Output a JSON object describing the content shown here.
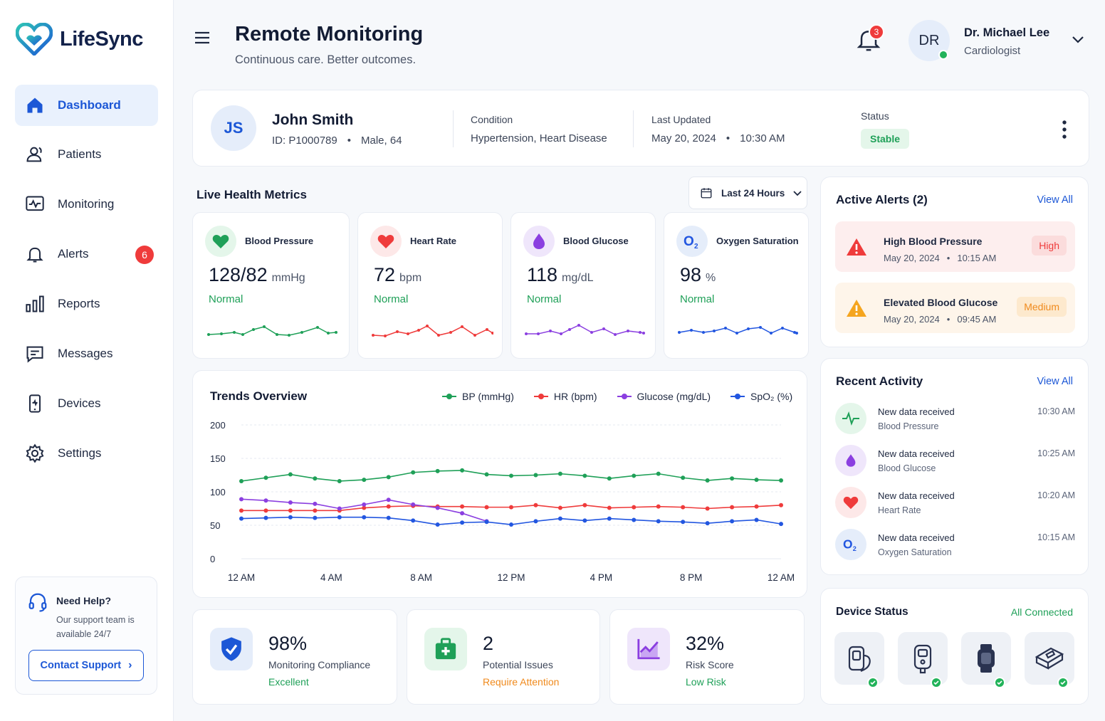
{
  "app": {
    "name": "LifeSync"
  },
  "sidebar": {
    "items": [
      {
        "label": "Dashboard",
        "icon": "home-icon",
        "active": true
      },
      {
        "label": "Patients",
        "icon": "users-icon"
      },
      {
        "label": "Monitoring",
        "icon": "monitor-icon"
      },
      {
        "label": "Alerts",
        "icon": "bell-icon",
        "badge": "6"
      },
      {
        "label": "Reports",
        "icon": "bar-chart-icon"
      },
      {
        "label": "Messages",
        "icon": "message-icon"
      },
      {
        "label": "Devices",
        "icon": "device-icon"
      },
      {
        "label": "Settings",
        "icon": "gear-icon"
      }
    ],
    "help": {
      "title": "Need Help?",
      "text": "Our support team is available 24/7",
      "button": "Contact Support"
    }
  },
  "header": {
    "title": "Remote Monitoring",
    "subtitle": "Continuous care. Better outcomes.",
    "notifications": "3",
    "user": {
      "initials": "DR",
      "name": "Dr. Michael Lee",
      "role": "Cardiologist"
    }
  },
  "patient": {
    "initials": "JS",
    "name": "John Smith",
    "id": "ID: P1000789",
    "demo": "Male, 64",
    "condition_label": "Condition",
    "condition": "Hypertension, Heart Disease",
    "updated_label": "Last Updated",
    "updated_date": "May 20, 2024",
    "updated_time": "10:30 AM",
    "status_label": "Status",
    "status": "Stable"
  },
  "metrics": {
    "title": "Live Health Metrics",
    "range": "Last 24 Hours",
    "cards": [
      {
        "title": "Blood Pressure",
        "value": "128/82",
        "unit": "mmHg",
        "status": "Normal",
        "color": "#1fa058"
      },
      {
        "title": "Heart Rate",
        "value": "72",
        "unit": "bpm",
        "status": "Normal",
        "color": "#ef3b3b"
      },
      {
        "title": "Blood Glucose",
        "value": "118",
        "unit": "mg/dL",
        "status": "Normal",
        "color": "#8b3fe0"
      },
      {
        "title": "Oxygen Saturation",
        "value": "98",
        "unit": "%",
        "status": "Normal",
        "color": "#2256e0"
      }
    ]
  },
  "chart_data": {
    "type": "line",
    "title": "Trends Overview",
    "x_ticks": [
      "12 AM",
      "4 AM",
      "8 AM",
      "12 PM",
      "4 PM",
      "8 PM",
      "12 AM"
    ],
    "ylim": [
      0,
      200
    ],
    "y_ticks": [
      "0",
      "50",
      "100",
      "150",
      "200"
    ],
    "grid": true,
    "legend": "top-right",
    "series": [
      {
        "name": "BP (mmHg)",
        "color": "#1fa058",
        "values": [
          116,
          121,
          126,
          120,
          116,
          118,
          122,
          129,
          131,
          132,
          126,
          124,
          125,
          127,
          124,
          120,
          124,
          127,
          121,
          117,
          120,
          118,
          117
        ]
      },
      {
        "name": "HR (bpm)",
        "color": "#ef3b3b",
        "values": [
          72,
          72,
          72,
          72,
          72,
          76,
          78,
          79,
          78,
          78,
          77,
          77,
          80,
          76,
          80,
          76,
          77,
          78,
          77,
          75,
          77,
          78,
          80
        ]
      },
      {
        "name": "Glucose (mg/dL)",
        "color": "#8b3fe0",
        "values": [
          89,
          87,
          84,
          82,
          75,
          81,
          88,
          81,
          76,
          68,
          56
        ]
      },
      {
        "name": "SpO₂ (%)",
        "color": "#2256e0",
        "values": [
          60,
          61,
          62,
          61,
          62,
          62,
          61,
          57,
          51,
          54,
          55,
          51,
          56,
          60,
          57,
          60,
          58,
          56,
          55,
          53,
          56,
          58,
          52
        ]
      }
    ]
  },
  "alerts": {
    "title": "Active Alerts (2)",
    "view_all": "View All",
    "items": [
      {
        "title": "High Blood Pressure",
        "date": "May 20, 2024",
        "time": "10:15 AM",
        "level": "High"
      },
      {
        "title": "Elevated Blood Glucose",
        "date": "May 20, 2024",
        "time": "09:45 AM",
        "level": "Medium"
      }
    ]
  },
  "activity": {
    "title": "Recent Activity",
    "view_all": "View All",
    "items": [
      {
        "title": "New data received",
        "sub": "Blood Pressure",
        "time": "10:30 AM"
      },
      {
        "title": "New data received",
        "sub": "Blood Glucose",
        "time": "10:25 AM"
      },
      {
        "title": "New data received",
        "sub": "Heart Rate",
        "time": "10:20 AM"
      },
      {
        "title": "New data received",
        "sub": "Oxygen Saturation",
        "time": "10:15 AM"
      }
    ]
  },
  "devices": {
    "title": "Device Status",
    "status": "All Connected"
  },
  "stats": [
    {
      "value": "98%",
      "label": "Monitoring Compliance",
      "sub": "Excellent",
      "sub_color": "#1fa058"
    },
    {
      "value": "2",
      "label": "Potential Issues",
      "sub": "Require Attention",
      "sub_color": "#f08a1c"
    },
    {
      "value": "32%",
      "label": "Risk Score",
      "sub": "Low Risk",
      "sub_color": "#1fa058"
    }
  ]
}
